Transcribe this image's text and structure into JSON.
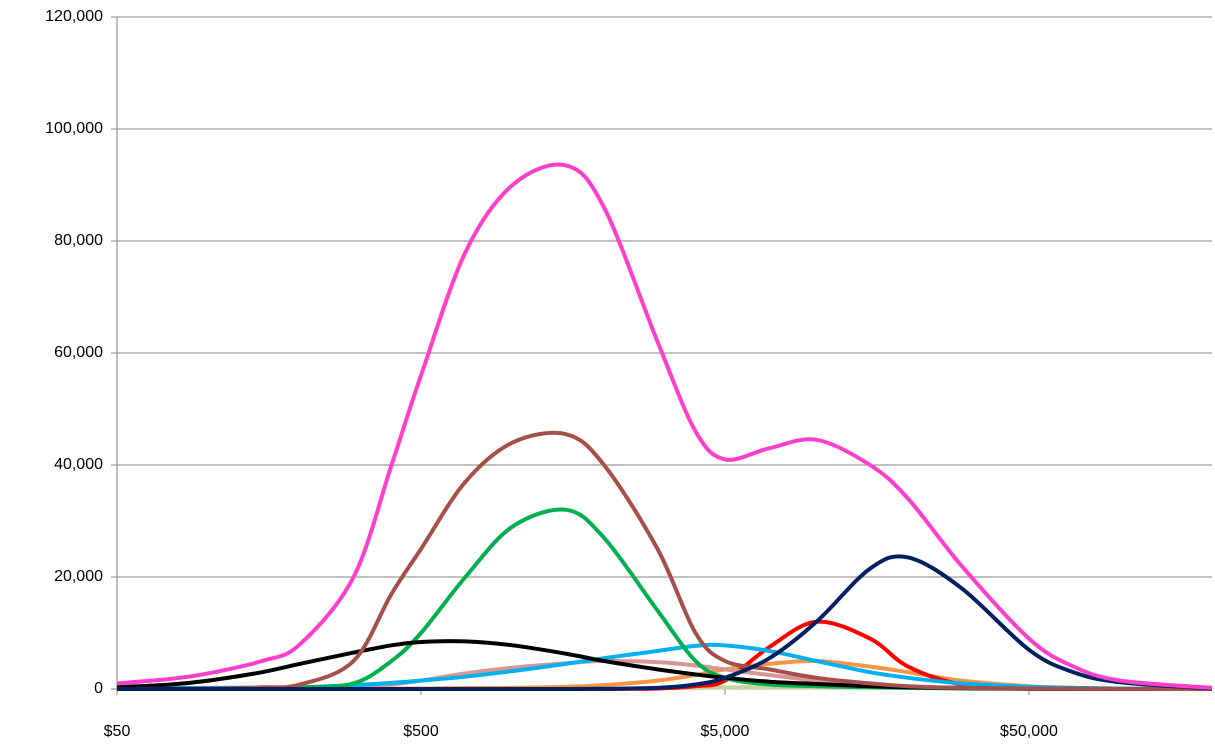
{
  "chart_data": {
    "type": "line",
    "xscale": "log",
    "grid": true,
    "x": [
      50,
      75,
      100,
      150,
      200,
      300,
      400,
      500,
      700,
      1000,
      1500,
      2000,
      3000,
      4000,
      5000,
      7000,
      10000,
      15000,
      20000,
      30000,
      50000,
      70000,
      100000,
      200000
    ],
    "xlim": [
      50,
      200000
    ],
    "xticks": [
      {
        "value": 50,
        "label": "$50"
      },
      {
        "value": 500,
        "label": "$500"
      },
      {
        "value": 5000,
        "label": "$5,000"
      },
      {
        "value": 50000,
        "label": "$50,000"
      }
    ],
    "ylim": [
      0,
      120000
    ],
    "yticks": [
      0,
      {
        "value": 20000,
        "label": "20,000"
      },
      {
        "value": 40000,
        "label": "40,000"
      },
      {
        "value": 60000,
        "label": "60,000"
      },
      {
        "value": 80000,
        "label": "80,000"
      },
      {
        "value": 100000,
        "label": "100,000"
      },
      {
        "value": 120000,
        "label": "120,000"
      }
    ],
    "series": [
      {
        "color": "#c3d69b",
        "values": [
          0,
          0,
          0,
          0,
          0,
          0,
          0,
          0,
          0,
          0,
          0,
          0,
          100,
          200,
          300,
          300,
          300,
          300,
          300,
          300,
          200,
          100,
          50,
          0
        ]
      },
      {
        "color": "#f79646",
        "values": [
          0,
          0,
          0,
          0,
          0,
          0,
          50,
          100,
          150,
          200,
          400,
          700,
          1500,
          2500,
          3500,
          4500,
          5000,
          4000,
          3000,
          1500,
          500,
          200,
          50,
          0
        ]
      },
      {
        "color": "#ff0000",
        "values": [
          0,
          0,
          0,
          0,
          0,
          0,
          0,
          0,
          0,
          0,
          0,
          0,
          100,
          500,
          1500,
          7500,
          12000,
          9000,
          4000,
          800,
          100,
          0,
          0,
          0
        ]
      },
      {
        "color": "#d99694",
        "values": [
          0,
          0,
          0,
          50,
          100,
          300,
          800,
          1500,
          2800,
          3800,
          4600,
          5000,
          4800,
          4200,
          3500,
          2500,
          1500,
          800,
          400,
          200,
          50,
          20,
          0,
          0
        ]
      },
      {
        "color": "#00b0f0",
        "values": [
          100,
          150,
          200,
          250,
          300,
          700,
          1100,
          1500,
          2200,
          3200,
          4500,
          5500,
          6800,
          7700,
          7800,
          6800,
          5000,
          3000,
          2000,
          1000,
          400,
          200,
          100,
          0
        ]
      },
      {
        "color": "#00b050",
        "values": [
          0,
          0,
          50,
          150,
          300,
          1000,
          5000,
          10000,
          20000,
          29000,
          32000,
          27000,
          14000,
          5000,
          2000,
          800,
          500,
          300,
          200,
          100,
          50,
          20,
          0,
          0
        ]
      },
      {
        "color": "#000000",
        "values": [
          300,
          800,
          1500,
          3000,
          4500,
          6500,
          7800,
          8400,
          8500,
          7800,
          6300,
          5000,
          3500,
          2600,
          2000,
          1300,
          900,
          500,
          300,
          150,
          50,
          20,
          0,
          0
        ]
      },
      {
        "color": "#a5504a",
        "values": [
          0,
          50,
          100,
          300,
          800,
          5000,
          17000,
          25000,
          37000,
          44000,
          45500,
          40000,
          25000,
          10000,
          5000,
          3500,
          2000,
          1000,
          500,
          200,
          100,
          50,
          20,
          0
        ]
      },
      {
        "color": "#002060",
        "values": [
          0,
          0,
          0,
          0,
          0,
          0,
          0,
          0,
          0,
          0,
          0,
          50,
          200,
          800,
          2000,
          5500,
          12000,
          21500,
          23500,
          18000,
          7000,
          3000,
          1200,
          100
        ]
      },
      {
        "color": "#ff3fcc",
        "values": [
          1000,
          1800,
          2800,
          5000,
          8000,
          20000,
          40000,
          56000,
          78000,
          90000,
          93500,
          86000,
          62000,
          46000,
          41000,
          43000,
          44500,
          40000,
          34000,
          22000,
          9000,
          4000,
          1500,
          200
        ]
      }
    ]
  }
}
